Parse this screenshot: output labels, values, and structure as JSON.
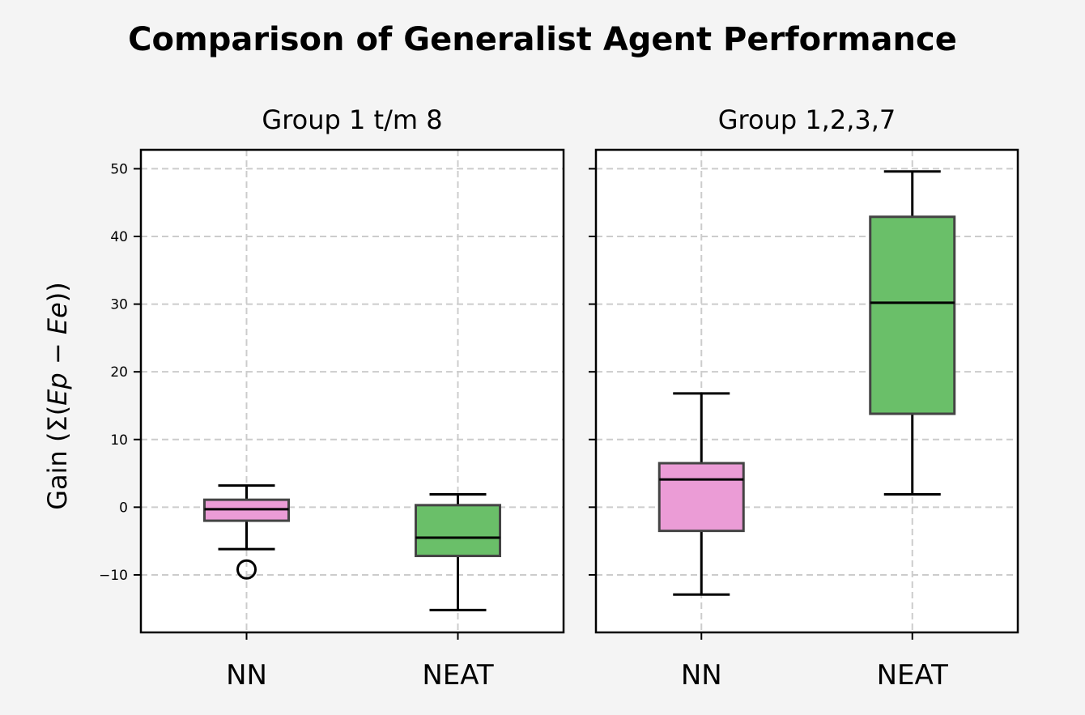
{
  "figure_title": "Comparison of Generalist Agent Performance",
  "colors": {
    "background": "#f4f4f4",
    "plot_background": "#ffffff",
    "nn_box": "#eb9cd6",
    "neat_box": "#6abf69",
    "box_edge": "#444444",
    "grid": "#cccccc"
  },
  "chart_data": [
    {
      "type": "box",
      "title": "Group 1 t/m 8",
      "ylabel": "Gain (Σ(Ep − Ee))",
      "ylabel_parts": [
        "Gain (Σ(",
        "Ep",
        " − ",
        "Ee",
        "))"
      ],
      "categories": [
        "NN",
        "NEAT"
      ],
      "ylim": [
        -18.5,
        52.8
      ],
      "yticks": [
        -10,
        0,
        10,
        20,
        30,
        40,
        50
      ],
      "ytick_labels": [
        "−10",
        "0",
        "10",
        "20",
        "30",
        "40",
        "50"
      ],
      "show_ytick_labels": true,
      "grid": true,
      "boxes": [
        {
          "category": "NN",
          "whisker_low": -6.2,
          "q1": -2.0,
          "median": -0.3,
          "q3": 1.1,
          "whisker_high": 3.2,
          "outliers": [
            -9.2
          ],
          "color": "#eb9cd6"
        },
        {
          "category": "NEAT",
          "whisker_low": -15.2,
          "q1": -7.2,
          "median": -4.5,
          "q3": 0.3,
          "whisker_high": 1.9,
          "outliers": [],
          "color": "#6abf69"
        }
      ]
    },
    {
      "type": "box",
      "title": "Group 1,2,3,7",
      "ylabel": "",
      "categories": [
        "NN",
        "NEAT"
      ],
      "ylim": [
        -18.5,
        52.8
      ],
      "yticks": [
        -10,
        0,
        10,
        20,
        30,
        40,
        50
      ],
      "ytick_labels": [
        "−10",
        "0",
        "10",
        "20",
        "30",
        "40",
        "50"
      ],
      "show_ytick_labels": false,
      "grid": true,
      "boxes": [
        {
          "category": "NN",
          "whisker_low": -12.9,
          "q1": -3.5,
          "median": 4.1,
          "q3": 6.5,
          "whisker_high": 16.8,
          "outliers": [],
          "color": "#eb9cd6"
        },
        {
          "category": "NEAT",
          "whisker_low": 1.9,
          "q1": 13.8,
          "median": 30.2,
          "q3": 42.9,
          "whisker_high": 49.6,
          "outliers": [],
          "color": "#6abf69"
        }
      ]
    }
  ]
}
